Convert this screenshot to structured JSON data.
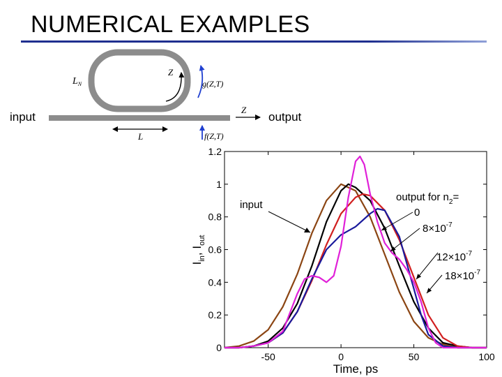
{
  "slide": {
    "title": "NUMERICAL EXAMPLES",
    "title_rule_colors": [
      "#1f2f8f",
      "#8fa0d8"
    ]
  },
  "diagram": {
    "ring_label": "L",
    "ring_label_sub": "N",
    "z_ring": "Z",
    "g_label": "g(Z,T)",
    "input_label": "input",
    "output_label": "output",
    "z_bus": "Z",
    "l_label": "L",
    "f_label": "f(Z,T)",
    "arrow_color": "#1f3fd0",
    "ring_color": "#8c8c8c"
  },
  "chart_data": {
    "type": "line",
    "xlabel": "Time, ps",
    "ylabel_base": "I",
    "ylabel_sub1": "in",
    "ylabel_sep": ", I",
    "ylabel_sub2": "out",
    "xlim": [
      -80,
      100
    ],
    "ylim": [
      0,
      1.2
    ],
    "xticks": [
      -50,
      0,
      50,
      100
    ],
    "yticks": [
      0,
      0.2,
      0.4,
      0.6,
      0.8,
      1,
      1.2
    ],
    "ytick_labels": [
      "0",
      "0.2",
      "0.4",
      "0.6",
      "0.8",
      "1",
      "1.2"
    ],
    "grid": false,
    "annotations": {
      "input": "input",
      "output_for": "output for n",
      "output_for_sub": "2",
      "output_for_eq": "=",
      "labels": [
        {
          "mant": "0",
          "exp": ""
        },
        {
          "mant": "8×10",
          "exp": "-7"
        },
        {
          "mant": "12×10",
          "exp": "-7"
        },
        {
          "mant": "18×10",
          "exp": "-7"
        }
      ]
    },
    "series": [
      {
        "color": "#8b4513",
        "x": [
          -80,
          -70,
          -60,
          -50,
          -40,
          -30,
          -20,
          -10,
          0,
          10,
          20,
          30,
          40,
          50,
          60,
          70,
          80,
          90,
          100
        ],
        "y": [
          0.0,
          0.01,
          0.04,
          0.11,
          0.25,
          0.45,
          0.7,
          0.9,
          1.0,
          0.96,
          0.8,
          0.57,
          0.34,
          0.16,
          0.06,
          0.02,
          0.0,
          0.0,
          0.0
        ]
      },
      {
        "color": "#000000",
        "x": [
          -80,
          -70,
          -60,
          -50,
          -40,
          -30,
          -20,
          -10,
          0,
          5,
          10,
          20,
          30,
          40,
          50,
          60,
          70,
          80,
          90,
          100
        ],
        "y": [
          0.0,
          0.0,
          0.01,
          0.04,
          0.12,
          0.27,
          0.5,
          0.77,
          0.96,
          1.0,
          0.98,
          0.9,
          0.73,
          0.5,
          0.28,
          0.12,
          0.03,
          0.01,
          0.0,
          0.0
        ]
      },
      {
        "color": "#d11f1f",
        "x": [
          -80,
          -70,
          -60,
          -50,
          -40,
          -30,
          -20,
          -10,
          0,
          10,
          15,
          20,
          30,
          40,
          50,
          60,
          70,
          80,
          90,
          100
        ],
        "y": [
          0.0,
          0.0,
          0.01,
          0.03,
          0.09,
          0.22,
          0.41,
          0.63,
          0.82,
          0.92,
          0.94,
          0.93,
          0.84,
          0.66,
          0.43,
          0.2,
          0.06,
          0.01,
          0.0,
          0.0
        ]
      },
      {
        "color": "#1a1a9c",
        "x": [
          -80,
          -70,
          -60,
          -50,
          -40,
          -30,
          -20,
          -10,
          0,
          10,
          20,
          25,
          30,
          40,
          50,
          55,
          60,
          70,
          80,
          90,
          100
        ],
        "y": [
          0.0,
          0.0,
          0.01,
          0.03,
          0.09,
          0.22,
          0.42,
          0.6,
          0.69,
          0.74,
          0.82,
          0.85,
          0.84,
          0.68,
          0.36,
          0.2,
          0.08,
          0.01,
          0.0,
          0.0,
          0.0
        ]
      },
      {
        "color": "#e020d8",
        "x": [
          -80,
          -70,
          -60,
          -50,
          -40,
          -30,
          -25,
          -20,
          -15,
          -10,
          -5,
          0,
          5,
          10,
          13,
          16,
          20,
          25,
          30,
          35,
          40,
          45,
          50,
          55,
          60,
          65,
          70,
          80,
          100
        ],
        "y": [
          0.0,
          0.0,
          0.01,
          0.03,
          0.1,
          0.33,
          0.42,
          0.44,
          0.43,
          0.4,
          0.44,
          0.62,
          0.92,
          1.14,
          1.17,
          1.12,
          0.94,
          0.77,
          0.64,
          0.58,
          0.54,
          0.48,
          0.4,
          0.28,
          0.12,
          0.03,
          0.0,
          0.0,
          0.0
        ]
      }
    ]
  }
}
